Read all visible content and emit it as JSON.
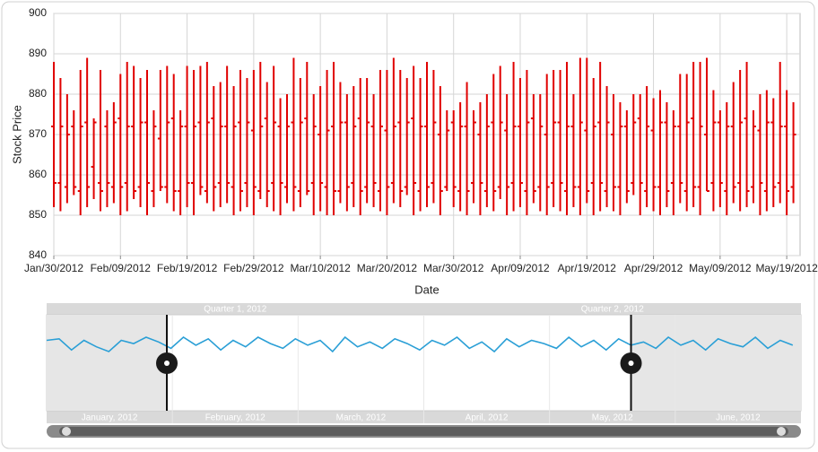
{
  "chart_data": [
    {
      "type": "ohlc",
      "x_label": "Date",
      "y_label": "Stock Price",
      "color": "#e00000",
      "grid": true,
      "x": [
        "2012-01-30",
        "2012-01-31",
        "2012-02-01",
        "2012-02-02",
        "2012-02-03",
        "2012-02-04",
        "2012-02-05",
        "2012-02-06",
        "2012-02-07",
        "2012-02-08",
        "2012-02-09",
        "2012-02-10",
        "2012-02-11",
        "2012-02-12",
        "2012-02-13",
        "2012-02-14",
        "2012-02-15",
        "2012-02-16",
        "2012-02-17",
        "2012-02-18",
        "2012-02-19",
        "2012-02-20",
        "2012-02-21",
        "2012-02-22",
        "2012-02-23",
        "2012-02-24",
        "2012-02-25",
        "2012-02-26",
        "2012-02-27",
        "2012-02-28",
        "2012-02-29",
        "2012-03-01",
        "2012-03-02",
        "2012-03-03",
        "2012-03-04",
        "2012-03-05",
        "2012-03-06",
        "2012-03-07",
        "2012-03-08",
        "2012-03-09",
        "2012-03-10",
        "2012-03-11",
        "2012-03-12",
        "2012-03-13",
        "2012-03-14",
        "2012-03-15",
        "2012-03-16",
        "2012-03-17",
        "2012-03-18",
        "2012-03-19",
        "2012-03-20",
        "2012-03-21",
        "2012-03-22",
        "2012-03-23",
        "2012-03-24",
        "2012-03-25",
        "2012-03-26",
        "2012-03-27",
        "2012-03-28",
        "2012-03-29",
        "2012-03-30",
        "2012-03-31",
        "2012-04-01",
        "2012-04-02",
        "2012-04-03",
        "2012-04-04",
        "2012-04-05",
        "2012-04-06",
        "2012-04-07",
        "2012-04-08",
        "2012-04-09",
        "2012-04-10",
        "2012-04-11",
        "2012-04-12",
        "2012-04-13",
        "2012-04-14",
        "2012-04-15",
        "2012-04-16",
        "2012-04-17",
        "2012-04-18",
        "2012-04-19",
        "2012-04-20",
        "2012-04-21",
        "2012-04-22",
        "2012-04-23",
        "2012-04-24",
        "2012-04-25",
        "2012-04-26",
        "2012-04-27",
        "2012-04-28",
        "2012-04-29",
        "2012-04-30",
        "2012-05-01",
        "2012-05-02",
        "2012-05-03",
        "2012-05-04",
        "2012-05-05",
        "2012-05-06",
        "2012-05-07",
        "2012-05-08",
        "2012-05-09",
        "2012-05-10",
        "2012-05-11",
        "2012-05-12",
        "2012-05-13",
        "2012-05-14",
        "2012-05-15",
        "2012-05-16",
        "2012-05-17",
        "2012-05-18",
        "2012-05-19",
        "2012-05-20"
      ],
      "open": [
        872,
        858,
        857,
        872,
        856,
        873,
        862,
        858,
        872,
        857,
        874,
        858,
        872,
        857,
        873,
        856,
        869,
        857,
        874,
        856,
        872,
        858,
        873,
        856,
        874,
        858,
        872,
        857,
        873,
        858,
        871,
        856,
        874,
        858,
        872,
        857,
        873,
        856,
        874,
        858,
        870,
        857,
        872,
        856,
        873,
        858,
        874,
        857,
        872,
        856,
        871,
        858,
        873,
        857,
        874,
        856,
        872,
        858,
        870,
        857,
        873,
        856,
        872,
        858,
        870,
        856,
        873,
        857,
        871,
        858,
        872,
        856,
        874,
        857,
        870,
        858,
        873,
        856,
        872,
        857,
        871,
        858,
        873,
        856,
        870,
        857,
        872,
        858,
        874,
        856,
        871,
        857,
        873,
        858,
        872,
        856,
        874,
        857,
        870,
        858,
        873,
        856,
        872,
        858,
        874,
        857,
        871,
        856,
        873,
        858,
        872,
        857
      ],
      "high": [
        888,
        884,
        880,
        876,
        886,
        889,
        874,
        886,
        876,
        878,
        885,
        888,
        887,
        884,
        886,
        876,
        886,
        887,
        885,
        876,
        887,
        886,
        887,
        888,
        882,
        883,
        887,
        882,
        886,
        884,
        886,
        888,
        883,
        887,
        879,
        880,
        889,
        884,
        888,
        880,
        882,
        886,
        888,
        883,
        880,
        882,
        884,
        884,
        880,
        886,
        886,
        889,
        886,
        884,
        887,
        884,
        888,
        886,
        882,
        876,
        876,
        878,
        883,
        876,
        878,
        880,
        885,
        887,
        880,
        888,
        884,
        886,
        880,
        880,
        885,
        886,
        886,
        888,
        880,
        889,
        889,
        884,
        888,
        882,
        880,
        878,
        876,
        880,
        880,
        882,
        879,
        881,
        878,
        876,
        885,
        885,
        888,
        888,
        889,
        881,
        876,
        878,
        883,
        886,
        888,
        876,
        880,
        881,
        879,
        888,
        881,
        878
      ],
      "low": [
        852,
        851,
        853,
        855,
        850,
        852,
        854,
        851,
        852,
        853,
        850,
        851,
        854,
        852,
        850,
        852,
        856,
        853,
        851,
        850,
        852,
        850,
        855,
        853,
        851,
        852,
        853,
        850,
        851,
        852,
        850,
        854,
        852,
        851,
        850,
        853,
        851,
        852,
        855,
        850,
        851,
        850,
        850,
        853,
        851,
        852,
        850,
        853,
        852,
        851,
        850,
        853,
        852,
        855,
        850,
        851,
        852,
        853,
        850,
        856,
        852,
        851,
        850,
        853,
        850,
        852,
        851,
        854,
        850,
        851,
        852,
        850,
        853,
        851,
        850,
        852,
        851,
        850,
        852,
        850,
        853,
        850,
        851,
        852,
        851,
        850,
        853,
        855,
        850,
        852,
        851,
        850,
        852,
        850,
        853,
        851,
        852,
        850,
        856,
        851,
        852,
        850,
        853,
        851,
        852,
        853,
        850,
        851,
        852,
        853,
        850,
        853
      ],
      "close": [
        858,
        872,
        870,
        857,
        872,
        857,
        873,
        856,
        858,
        873,
        857,
        872,
        856,
        873,
        858,
        872,
        857,
        873,
        856,
        872,
        858,
        872,
        857,
        873,
        857,
        872,
        858,
        872,
        856,
        873,
        857,
        872,
        856,
        873,
        858,
        872,
        857,
        873,
        856,
        872,
        858,
        871,
        856,
        873,
        857,
        872,
        856,
        873,
        858,
        872,
        857,
        872,
        856,
        873,
        858,
        872,
        857,
        873,
        856,
        871,
        857,
        872,
        856,
        873,
        858,
        872,
        856,
        873,
        857,
        872,
        858,
        873,
        856,
        872,
        857,
        873,
        858,
        872,
        857,
        873,
        856,
        872,
        858,
        873,
        857,
        872,
        856,
        873,
        858,
        872,
        857,
        873,
        856,
        872,
        858,
        873,
        857,
        872,
        856,
        873,
        858,
        872,
        857,
        873,
        856,
        872,
        858,
        873,
        857,
        872,
        856,
        870
      ],
      "xlim": [
        "2012-01-30",
        "2012-05-21"
      ],
      "xticks": [
        {
          "value": "2012-01-30",
          "label": "Jan/30/2012"
        },
        {
          "value": "2012-02-09",
          "label": "Feb/09/2012"
        },
        {
          "value": "2012-02-19",
          "label": "Feb/19/2012"
        },
        {
          "value": "2012-02-29",
          "label": "Feb/29/2012"
        },
        {
          "value": "2012-03-10",
          "label": "Mar/10/2012"
        },
        {
          "value": "2012-03-20",
          "label": "Mar/20/2012"
        },
        {
          "value": "2012-03-30",
          "label": "Mar/30/2012"
        },
        {
          "value": "2012-04-09",
          "label": "Apr/09/2012"
        },
        {
          "value": "2012-04-19",
          "label": "Apr/19/2012"
        },
        {
          "value": "2012-04-29",
          "label": "Apr/29/2012"
        },
        {
          "value": "2012-05-09",
          "label": "May/09/2012"
        },
        {
          "value": "2012-05-19",
          "label": "May/19/2012"
        }
      ],
      "ylim": [
        840,
        900
      ],
      "yticks": [
        840,
        850,
        860,
        870,
        880,
        890,
        900
      ]
    },
    {
      "type": "line",
      "color": "#2a9fd6",
      "x": [
        "2012-01-01",
        "2012-01-04",
        "2012-01-07",
        "2012-01-10",
        "2012-01-13",
        "2012-01-16",
        "2012-01-19",
        "2012-01-22",
        "2012-01-25",
        "2012-01-28",
        "2012-01-31",
        "2012-02-03",
        "2012-02-06",
        "2012-02-09",
        "2012-02-12",
        "2012-02-15",
        "2012-02-18",
        "2012-02-21",
        "2012-02-24",
        "2012-02-27",
        "2012-03-01",
        "2012-03-04",
        "2012-03-07",
        "2012-03-10",
        "2012-03-13",
        "2012-03-16",
        "2012-03-19",
        "2012-03-22",
        "2012-03-25",
        "2012-03-28",
        "2012-03-31",
        "2012-04-03",
        "2012-04-06",
        "2012-04-09",
        "2012-04-12",
        "2012-04-15",
        "2012-04-18",
        "2012-04-21",
        "2012-04-24",
        "2012-04-27",
        "2012-04-30",
        "2012-05-03",
        "2012-05-06",
        "2012-05-09",
        "2012-05-12",
        "2012-05-15",
        "2012-05-18",
        "2012-05-21",
        "2012-05-24",
        "2012-05-27",
        "2012-05-30",
        "2012-06-02",
        "2012-06-05",
        "2012-06-08",
        "2012-06-11",
        "2012-06-14",
        "2012-06-17",
        "2012-06-20",
        "2012-06-23",
        "2012-06-26",
        "2012-06-29"
      ],
      "values": [
        884,
        885,
        878,
        884,
        880,
        877,
        884,
        882,
        886,
        883,
        879,
        886,
        881,
        885,
        878,
        884,
        880,
        886,
        882,
        879,
        885,
        881,
        884,
        877,
        886,
        880,
        883,
        879,
        885,
        882,
        878,
        884,
        881,
        886,
        879,
        883,
        877,
        885,
        880,
        884,
        882,
        879,
        886,
        880,
        884,
        878,
        885,
        881,
        883,
        879,
        886,
        881,
        884,
        878,
        885,
        882,
        880,
        886,
        879,
        884,
        881
      ],
      "xlim": [
        "2012-01-01",
        "2012-07-01"
      ],
      "ylim": [
        840,
        900
      ],
      "selected_range": [
        "2012-01-30",
        "2012-05-21"
      ],
      "top_labels": [
        "Quarter 1, 2012",
        "Quarter 2, 2012"
      ],
      "bottom_labels": [
        "January, 2012",
        "February, 2012",
        "March, 2012",
        "April, 2012",
        "May, 2012",
        "June, 2012"
      ]
    }
  ]
}
